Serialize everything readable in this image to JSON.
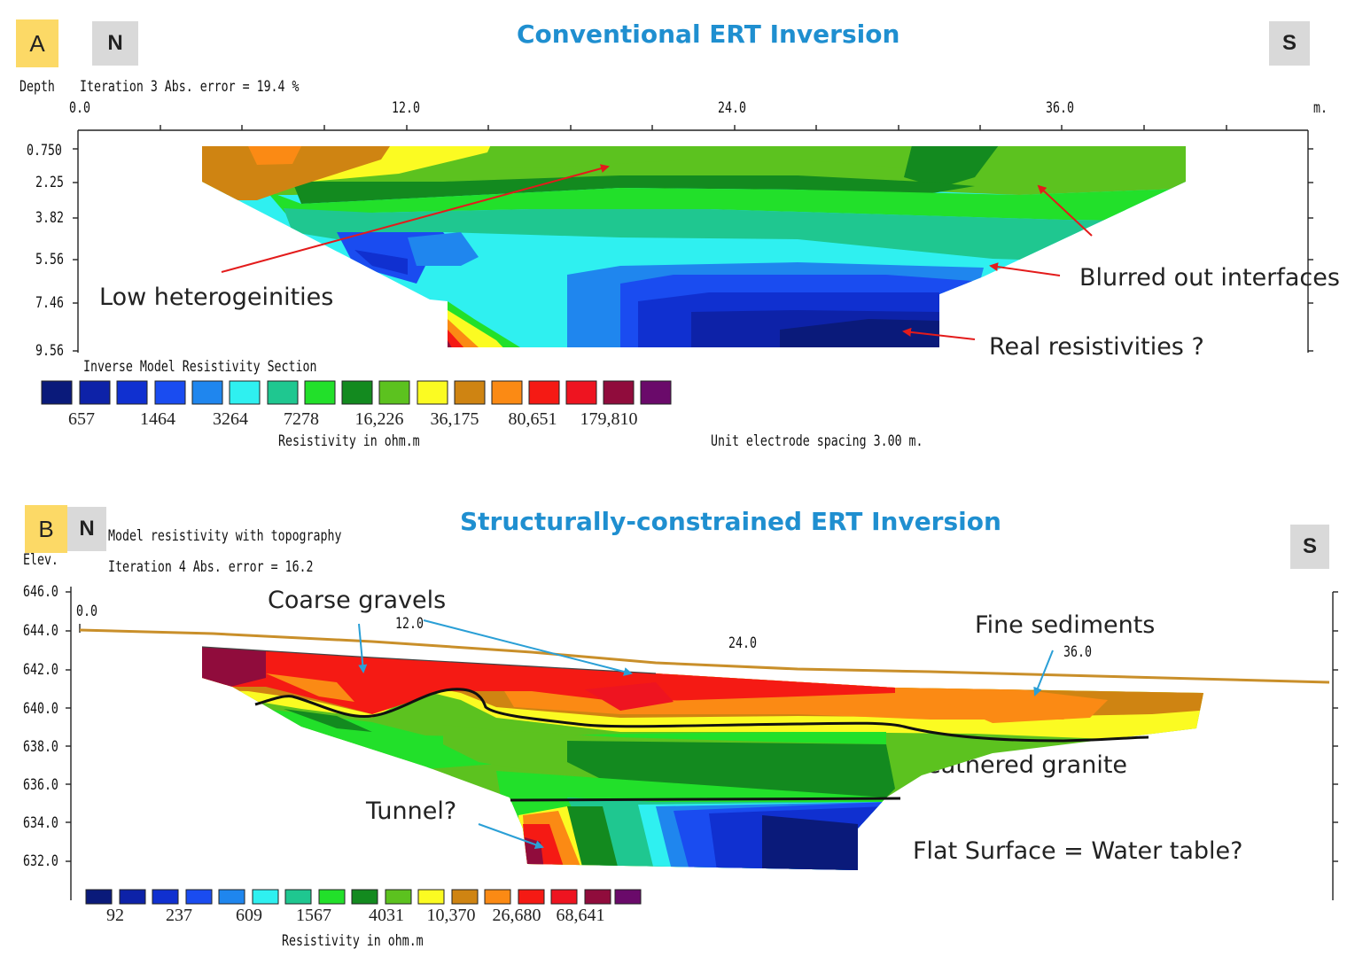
{
  "panel_a": {
    "letter": "A",
    "north": "N",
    "south": "S",
    "title": "Conventional ERT Inversion",
    "depth_label": "Depth",
    "iteration_text": "Iteration 3 Abs. error = 19.4 %",
    "x_ticks": [
      "0.0",
      "12.0",
      "24.0",
      "36.0"
    ],
    "x_unit": "m.",
    "depth_ticks": [
      "0.750",
      "2.25",
      "3.82",
      "5.56",
      "7.46",
      "9.56"
    ],
    "section_title": "Inverse Model Resistivity Section",
    "scale_values": [
      "657",
      "1464",
      "3264",
      "7278",
      "16,226",
      "36,175",
      "80,651",
      "179,810"
    ],
    "scale_caption": "Resistivity in ohm.m",
    "spacing_note": "Unit electrode spacing 3.00 m.",
    "annotations": {
      "low_heterogeneities": "Low heterogeinities",
      "blurred_interfaces": "Blurred out interfaces",
      "real_resistivities": "Real resistivities ?"
    }
  },
  "panel_b": {
    "letter": "B",
    "north": "N",
    "south": "S",
    "title": "Structurally-constrained ERT Inversion",
    "model_title": "Model resistivity with topography",
    "elev_label": "Elev.",
    "iteration_text": "Iteration 4 Abs. error = 16.2",
    "x_ticks": [
      "0.0",
      "12.0",
      "24.0",
      "36.0"
    ],
    "elev_ticks": [
      "646.0",
      "644.0",
      "642.0",
      "640.0",
      "638.0",
      "636.0",
      "634.0",
      "632.0"
    ],
    "scale_values": [
      "92",
      "237",
      "609",
      "1567",
      "4031",
      "10,370",
      "26,680",
      "68,641"
    ],
    "scale_caption": "Resistivity in ohm.m",
    "annotations": {
      "coarse_gravels": "Coarse gravels",
      "fine_sediments": "Fine sediments",
      "weathered_granite": "Weathered granite",
      "tunnel": "Tunnel?",
      "water_table": "Flat Surface = Water table?"
    }
  },
  "colors": {
    "palette": [
      "#0a1a7a",
      "#0d22a8",
      "#1030d0",
      "#1a4cf0",
      "#1f86ee",
      "#2ff0f0",
      "#1fc790",
      "#22e02a",
      "#138a1f",
      "#5cc21f",
      "#fbfb22",
      "#cf8412",
      "#fb8a14",
      "#f51a14",
      "#ee1420",
      "#900c3c",
      "#6a0a6a"
    ],
    "title_blue": "#1f8fd0",
    "label_yellow": "#fcd966",
    "topo_line": "#c98f2a"
  }
}
